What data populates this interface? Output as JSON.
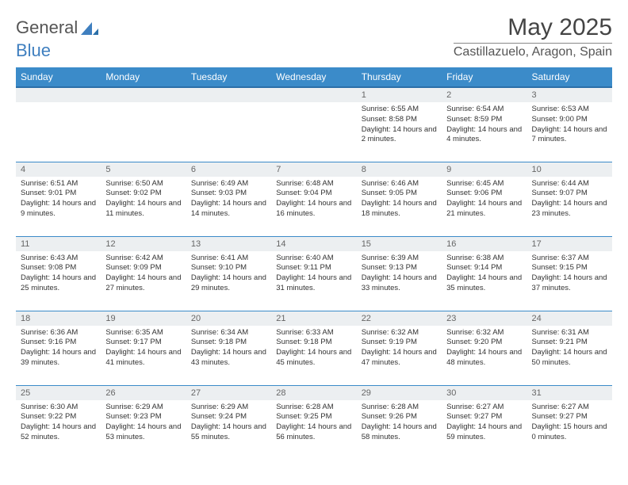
{
  "brand": {
    "part1": "General",
    "part2": "Blue"
  },
  "title": "May 2025",
  "location": "Castillazuelo, Aragon, Spain",
  "colors": {
    "header_bg": "#3b8bc9",
    "header_border": "#2b6fa8",
    "daynum_bg": "#eceff1",
    "row_border": "#3b8bc9",
    "text": "#333333",
    "logo_blue": "#3f7fbf"
  },
  "weekdays": [
    "Sunday",
    "Monday",
    "Tuesday",
    "Wednesday",
    "Thursday",
    "Friday",
    "Saturday"
  ],
  "weeks": [
    [
      {
        "day": "",
        "sunrise": "",
        "sunset": "",
        "daylight": ""
      },
      {
        "day": "",
        "sunrise": "",
        "sunset": "",
        "daylight": ""
      },
      {
        "day": "",
        "sunrise": "",
        "sunset": "",
        "daylight": ""
      },
      {
        "day": "",
        "sunrise": "",
        "sunset": "",
        "daylight": ""
      },
      {
        "day": "1",
        "sunrise": "Sunrise: 6:55 AM",
        "sunset": "Sunset: 8:58 PM",
        "daylight": "Daylight: 14 hours and 2 minutes."
      },
      {
        "day": "2",
        "sunrise": "Sunrise: 6:54 AM",
        "sunset": "Sunset: 8:59 PM",
        "daylight": "Daylight: 14 hours and 4 minutes."
      },
      {
        "day": "3",
        "sunrise": "Sunrise: 6:53 AM",
        "sunset": "Sunset: 9:00 PM",
        "daylight": "Daylight: 14 hours and 7 minutes."
      }
    ],
    [
      {
        "day": "4",
        "sunrise": "Sunrise: 6:51 AM",
        "sunset": "Sunset: 9:01 PM",
        "daylight": "Daylight: 14 hours and 9 minutes."
      },
      {
        "day": "5",
        "sunrise": "Sunrise: 6:50 AM",
        "sunset": "Sunset: 9:02 PM",
        "daylight": "Daylight: 14 hours and 11 minutes."
      },
      {
        "day": "6",
        "sunrise": "Sunrise: 6:49 AM",
        "sunset": "Sunset: 9:03 PM",
        "daylight": "Daylight: 14 hours and 14 minutes."
      },
      {
        "day": "7",
        "sunrise": "Sunrise: 6:48 AM",
        "sunset": "Sunset: 9:04 PM",
        "daylight": "Daylight: 14 hours and 16 minutes."
      },
      {
        "day": "8",
        "sunrise": "Sunrise: 6:46 AM",
        "sunset": "Sunset: 9:05 PM",
        "daylight": "Daylight: 14 hours and 18 minutes."
      },
      {
        "day": "9",
        "sunrise": "Sunrise: 6:45 AM",
        "sunset": "Sunset: 9:06 PM",
        "daylight": "Daylight: 14 hours and 21 minutes."
      },
      {
        "day": "10",
        "sunrise": "Sunrise: 6:44 AM",
        "sunset": "Sunset: 9:07 PM",
        "daylight": "Daylight: 14 hours and 23 minutes."
      }
    ],
    [
      {
        "day": "11",
        "sunrise": "Sunrise: 6:43 AM",
        "sunset": "Sunset: 9:08 PM",
        "daylight": "Daylight: 14 hours and 25 minutes."
      },
      {
        "day": "12",
        "sunrise": "Sunrise: 6:42 AM",
        "sunset": "Sunset: 9:09 PM",
        "daylight": "Daylight: 14 hours and 27 minutes."
      },
      {
        "day": "13",
        "sunrise": "Sunrise: 6:41 AM",
        "sunset": "Sunset: 9:10 PM",
        "daylight": "Daylight: 14 hours and 29 minutes."
      },
      {
        "day": "14",
        "sunrise": "Sunrise: 6:40 AM",
        "sunset": "Sunset: 9:11 PM",
        "daylight": "Daylight: 14 hours and 31 minutes."
      },
      {
        "day": "15",
        "sunrise": "Sunrise: 6:39 AM",
        "sunset": "Sunset: 9:13 PM",
        "daylight": "Daylight: 14 hours and 33 minutes."
      },
      {
        "day": "16",
        "sunrise": "Sunrise: 6:38 AM",
        "sunset": "Sunset: 9:14 PM",
        "daylight": "Daylight: 14 hours and 35 minutes."
      },
      {
        "day": "17",
        "sunrise": "Sunrise: 6:37 AM",
        "sunset": "Sunset: 9:15 PM",
        "daylight": "Daylight: 14 hours and 37 minutes."
      }
    ],
    [
      {
        "day": "18",
        "sunrise": "Sunrise: 6:36 AM",
        "sunset": "Sunset: 9:16 PM",
        "daylight": "Daylight: 14 hours and 39 minutes."
      },
      {
        "day": "19",
        "sunrise": "Sunrise: 6:35 AM",
        "sunset": "Sunset: 9:17 PM",
        "daylight": "Daylight: 14 hours and 41 minutes."
      },
      {
        "day": "20",
        "sunrise": "Sunrise: 6:34 AM",
        "sunset": "Sunset: 9:18 PM",
        "daylight": "Daylight: 14 hours and 43 minutes."
      },
      {
        "day": "21",
        "sunrise": "Sunrise: 6:33 AM",
        "sunset": "Sunset: 9:18 PM",
        "daylight": "Daylight: 14 hours and 45 minutes."
      },
      {
        "day": "22",
        "sunrise": "Sunrise: 6:32 AM",
        "sunset": "Sunset: 9:19 PM",
        "daylight": "Daylight: 14 hours and 47 minutes."
      },
      {
        "day": "23",
        "sunrise": "Sunrise: 6:32 AM",
        "sunset": "Sunset: 9:20 PM",
        "daylight": "Daylight: 14 hours and 48 minutes."
      },
      {
        "day": "24",
        "sunrise": "Sunrise: 6:31 AM",
        "sunset": "Sunset: 9:21 PM",
        "daylight": "Daylight: 14 hours and 50 minutes."
      }
    ],
    [
      {
        "day": "25",
        "sunrise": "Sunrise: 6:30 AM",
        "sunset": "Sunset: 9:22 PM",
        "daylight": "Daylight: 14 hours and 52 minutes."
      },
      {
        "day": "26",
        "sunrise": "Sunrise: 6:29 AM",
        "sunset": "Sunset: 9:23 PM",
        "daylight": "Daylight: 14 hours and 53 minutes."
      },
      {
        "day": "27",
        "sunrise": "Sunrise: 6:29 AM",
        "sunset": "Sunset: 9:24 PM",
        "daylight": "Daylight: 14 hours and 55 minutes."
      },
      {
        "day": "28",
        "sunrise": "Sunrise: 6:28 AM",
        "sunset": "Sunset: 9:25 PM",
        "daylight": "Daylight: 14 hours and 56 minutes."
      },
      {
        "day": "29",
        "sunrise": "Sunrise: 6:28 AM",
        "sunset": "Sunset: 9:26 PM",
        "daylight": "Daylight: 14 hours and 58 minutes."
      },
      {
        "day": "30",
        "sunrise": "Sunrise: 6:27 AM",
        "sunset": "Sunset: 9:27 PM",
        "daylight": "Daylight: 14 hours and 59 minutes."
      },
      {
        "day": "31",
        "sunrise": "Sunrise: 6:27 AM",
        "sunset": "Sunset: 9:27 PM",
        "daylight": "Daylight: 15 hours and 0 minutes."
      }
    ]
  ]
}
